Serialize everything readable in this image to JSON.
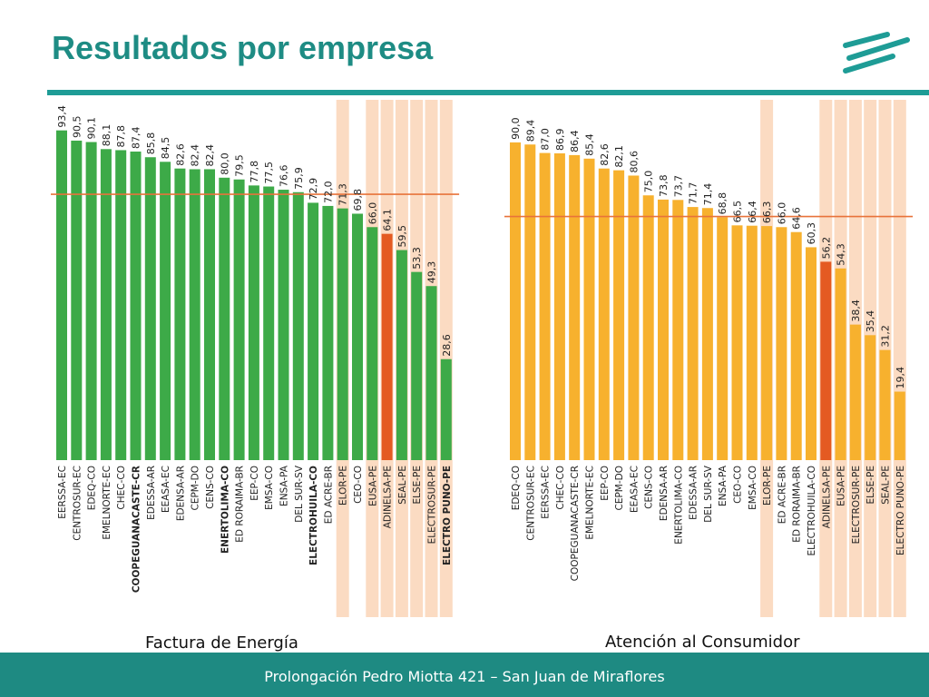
{
  "title": "Resultados por empresa",
  "footer": "Prolongación Pedro Miotta 421 – San Juan de Miraflores",
  "colors": {
    "teal": "#1e8c84",
    "green": "#3daa48",
    "orange_bar": "#f7b12e",
    "highlight_bar": "#e45a22",
    "band": "#f9cfae",
    "reference_line": "#e8733a"
  },
  "chart_data": [
    {
      "type": "bar",
      "caption": "Factura de Energía",
      "categories": [
        "EERSSA-EC",
        "CENTROSUR-EC",
        "EDEQ-CO",
        "EMELNORTE-EC",
        "CHEC-CO",
        "COOPEGUANACASTE-CR",
        "EDESSA-AR",
        "EEASA-EC",
        "EDENSA-AR",
        "CEPM-DO",
        "CENS-CO",
        "ENERTOLIMA-CO",
        "ED RORAIMA-BR",
        "EEP-CO",
        "EMSA-CO",
        "ENSA-PA",
        "DEL SUR-SV",
        "ELECTROHUILA-CO",
        "ED ACRE-BR",
        "ELOR-PE",
        "CEO-CO",
        "EUSA-PE",
        "ADINELSA-PE",
        "SEAL-PE",
        "ELSE-PE",
        "ELECTROSUR-PE",
        "ELECTRO PUNO-PE"
      ],
      "values": [
        93.4,
        90.5,
        90.1,
        88.1,
        87.8,
        87.4,
        85.8,
        84.5,
        82.6,
        82.4,
        82.4,
        80.0,
        79.5,
        77.8,
        77.5,
        76.6,
        75.9,
        72.9,
        72.0,
        71.3,
        69.8,
        66.0,
        64.1,
        59.5,
        53.3,
        49.3,
        28.6
      ],
      "value_labels": [
        "93,4",
        "90,5",
        "90,1",
        "88,1",
        "87,8",
        "87,4",
        "85,8",
        "84,5",
        "82,6",
        "82,4",
        "82,4",
        "80,0",
        "79,5",
        "77,8",
        "77,5",
        "76,6",
        "75,9",
        "72,9",
        "72,0",
        "71,3",
        "69,8",
        "66,0",
        "64,1",
        "59,5",
        "53,3",
        "49,3",
        "28,6"
      ],
      "highlight": [
        "ADINELSA-PE"
      ],
      "highlighted_bands": [
        "ELOR-PE",
        "EUSA-PE",
        "ADINELSA-PE",
        "SEAL-PE",
        "ELSE-PE",
        "ELECTROSUR-PE",
        "ELECTRO PUNO-PE"
      ],
      "bold_categories": [
        "COOPEGUANACASTE-CR",
        "ENERTOLIMA-CO",
        "ELECTROHUILA-CO",
        "ELECTRO PUNO-PE"
      ],
      "reference_value": 75.3,
      "ylim": [
        0,
        100
      ],
      "grid": false
    },
    {
      "type": "bar",
      "caption": "Atención al Consumidor",
      "categories": [
        "EDEQ-CO",
        "CENTROSUR-EC",
        "EERSSA-EC",
        "CHEC-CO",
        "COOPEGUANACASTE-CR",
        "EMELNORTE-EC",
        "EEP-CO",
        "CEPM-DO",
        "EEASA-EC",
        "CENS-CO",
        "EDENSA-AR",
        "ENERTOLIMA-CO",
        "EDESSA-AR",
        "DEL SUR-SV",
        "ENSA-PA",
        "CEO-CO",
        "EMSA-CO",
        "ELOR-PE",
        "ED ACRE-BR",
        "ED RORAIMA-BR",
        "ELECTROHUILA-CO",
        "ADINELSA-PE",
        "EUSA-PE",
        "ELECTROSUR-PE",
        "ELSE-PE",
        "SEAL-PE",
        "ELECTRO PUNO-PE"
      ],
      "values": [
        90.0,
        89.4,
        87.0,
        86.9,
        86.4,
        85.4,
        82.6,
        82.1,
        80.6,
        75.0,
        73.8,
        73.7,
        71.7,
        71.4,
        68.8,
        66.5,
        66.4,
        66.3,
        66.0,
        64.6,
        60.3,
        56.2,
        54.3,
        38.4,
        35.4,
        31.2,
        19.4
      ],
      "value_labels": [
        "90,0",
        "89,4",
        "87,0",
        "86,9",
        "86,4",
        "85,4",
        "82,6",
        "82,1",
        "80,6",
        "75,0",
        "73,8",
        "73,7",
        "71,7",
        "71,4",
        "68,8",
        "66,5",
        "66,4",
        "66,3",
        "66,0",
        "64,6",
        "60,3",
        "56,2",
        "54,3",
        "38,4",
        "35,4",
        "31,2",
        "19,4"
      ],
      "highlight": [
        "ADINELSA-PE"
      ],
      "highlighted_bands": [
        "ELOR-PE",
        "ADINELSA-PE",
        "EUSA-PE",
        "ELECTROSUR-PE",
        "ELSE-PE",
        "SEAL-PE",
        "ELECTRO PUNO-PE"
      ],
      "bold_categories": [],
      "reference_value": 69.0,
      "ylim": [
        0,
        100
      ],
      "grid": false
    }
  ]
}
